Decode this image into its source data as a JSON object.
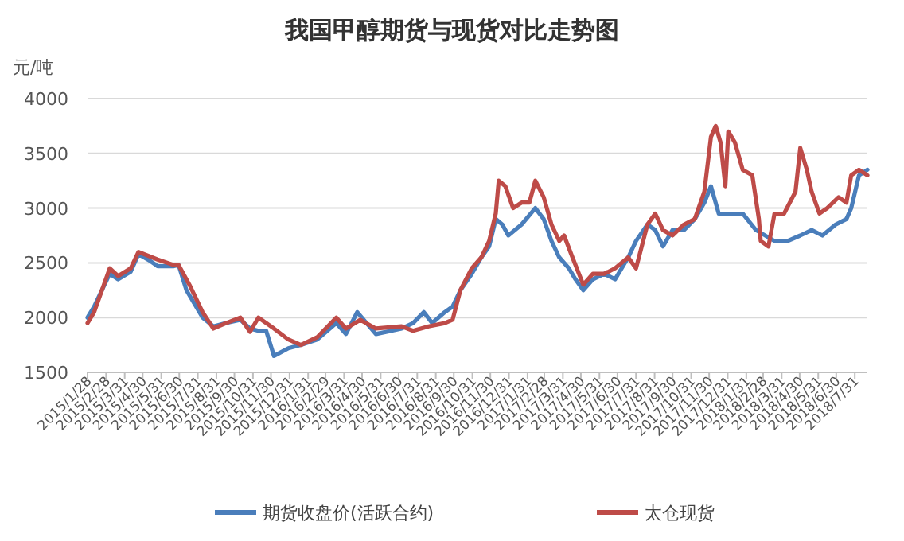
{
  "chart_data": {
    "type": "line",
    "title": "我国甲醇期货与现货对比走势图",
    "ylabel": "元/吨",
    "xlim": [
      "2015-01-28",
      "2018-08-21"
    ],
    "xticks": [
      {
        "value": "2015-01-28",
        "label": "2015/1/28"
      },
      {
        "value": "2015-02-28",
        "label": "2015/2/28"
      },
      {
        "value": "2015-03-31",
        "label": "2015/3/31"
      },
      {
        "value": "2015-04-30",
        "label": "2015/4/30"
      },
      {
        "value": "2015-05-31",
        "label": "2015/5/31"
      },
      {
        "value": "2015-06-30",
        "label": "2015/6/30"
      },
      {
        "value": "2015-07-31",
        "label": "2015/7/31"
      },
      {
        "value": "2015-08-31",
        "label": "2015/8/31"
      },
      {
        "value": "2015-09-30",
        "label": "2015/9/30"
      },
      {
        "value": "2015-10-31",
        "label": "2015/10/31"
      },
      {
        "value": "2015-11-30",
        "label": "2015/11/30"
      },
      {
        "value": "2015-12-31",
        "label": "2015/12/31"
      },
      {
        "value": "2016-01-31",
        "label": "2016/1/31"
      },
      {
        "value": "2016-02-29",
        "label": "2016/2/29"
      },
      {
        "value": "2016-03-31",
        "label": "2016/3/31"
      },
      {
        "value": "2016-04-30",
        "label": "2016/4/30"
      },
      {
        "value": "2016-05-31",
        "label": "2016/5/31"
      },
      {
        "value": "2016-06-30",
        "label": "2016/6/30"
      },
      {
        "value": "2016-07-31",
        "label": "2016/7/31"
      },
      {
        "value": "2016-08-31",
        "label": "2016/8/31"
      },
      {
        "value": "2016-09-30",
        "label": "2016/9/30"
      },
      {
        "value": "2016-10-31",
        "label": "2016/10/31"
      },
      {
        "value": "2016-11-30",
        "label": "2016/11/30"
      },
      {
        "value": "2016-12-31",
        "label": "2016/12/31"
      },
      {
        "value": "2017-01-31",
        "label": "2017/1/31"
      },
      {
        "value": "2017-02-28",
        "label": "2017/2/28"
      },
      {
        "value": "2017-03-31",
        "label": "2017/3/31"
      },
      {
        "value": "2017-04-30",
        "label": "2017/4/30"
      },
      {
        "value": "2017-05-31",
        "label": "2017/5/31"
      },
      {
        "value": "2017-06-30",
        "label": "2017/6/30"
      },
      {
        "value": "2017-07-31",
        "label": "2017/7/31"
      },
      {
        "value": "2017-08-31",
        "label": "2017/8/31"
      },
      {
        "value": "2017-09-30",
        "label": "2017/9/30"
      },
      {
        "value": "2017-10-31",
        "label": "2017/10/31"
      },
      {
        "value": "2017-11-30",
        "label": "2017/11/30"
      },
      {
        "value": "2017-12-31",
        "label": "2017/12/31"
      },
      {
        "value": "2018-01-31",
        "label": "2018/1/31"
      },
      {
        "value": "2018-02-28",
        "label": "2018/2/28"
      },
      {
        "value": "2018-03-31",
        "label": "2018/3/31"
      },
      {
        "value": "2018-04-30",
        "label": "2018/4/30"
      },
      {
        "value": "2018-05-31",
        "label": "2018/5/31"
      },
      {
        "value": "2018-06-30",
        "label": "2018/6/30"
      },
      {
        "value": "2018-07-31",
        "label": "2018/7/31"
      }
    ],
    "ylim": [
      1500,
      4000
    ],
    "yticks": [
      1500,
      2000,
      2500,
      3000,
      3500,
      4000
    ],
    "grid": "y",
    "legend": "bottom",
    "marker": "none",
    "line_style": "solid",
    "series": [
      {
        "name": "期货收盘价(活跃合约)",
        "color": "#4a7ebb",
        "x": [
          "2015-01-28",
          "2015-02-08",
          "2015-03-06",
          "2015-03-20",
          "2015-04-10",
          "2015-04-23",
          "2015-05-12",
          "2015-05-25",
          "2015-06-21",
          "2015-06-29",
          "2015-07-12",
          "2015-08-08",
          "2015-08-26",
          "2015-09-16",
          "2015-10-10",
          "2015-10-26",
          "2015-11-09",
          "2015-11-22",
          "2015-12-05",
          "2015-12-29",
          "2016-01-19",
          "2016-02-15",
          "2016-03-18",
          "2016-04-03",
          "2016-04-22",
          "2016-05-23",
          "2016-07-05",
          "2016-07-24",
          "2016-08-11",
          "2016-08-25",
          "2016-09-15",
          "2016-09-28",
          "2016-10-11",
          "2016-10-30",
          "2016-11-15",
          "2016-11-28",
          "2016-12-09",
          "2016-12-20",
          "2016-12-30",
          "2017-01-21",
          "2017-02-13",
          "2017-02-27",
          "2017-03-12",
          "2017-03-25",
          "2017-04-10",
          "2017-04-21",
          "2017-05-04",
          "2017-05-20",
          "2017-06-08",
          "2017-06-26",
          "2017-07-18",
          "2017-07-31",
          "2017-08-19",
          "2017-09-01",
          "2017-09-14",
          "2017-09-30",
          "2017-10-19",
          "2017-11-06",
          "2017-11-22",
          "2017-12-03",
          "2017-12-16",
          "2018-01-07",
          "2018-01-25",
          "2018-02-16",
          "2018-03-19",
          "2018-04-10",
          "2018-05-01",
          "2018-05-20",
          "2018-06-07",
          "2018-06-29",
          "2018-07-17",
          "2018-07-25",
          "2018-08-07",
          "2018-08-21"
        ],
        "values": [
          2000,
          2100,
          2400,
          2350,
          2420,
          2580,
          2520,
          2470,
          2470,
          2480,
          2250,
          2000,
          1920,
          1950,
          1980,
          1900,
          1880,
          1880,
          1650,
          1720,
          1750,
          1800,
          1950,
          1850,
          2050,
          1850,
          1900,
          1950,
          2050,
          1950,
          2050,
          2100,
          2250,
          2400,
          2550,
          2650,
          2900,
          2850,
          2750,
          2850,
          3000,
          2900,
          2700,
          2550,
          2450,
          2350,
          2250,
          2350,
          2400,
          2350,
          2550,
          2700,
          2850,
          2800,
          2650,
          2800,
          2800,
          2900,
          3050,
          3200,
          2950,
          2950,
          2950,
          2800,
          2700,
          2700,
          2750,
          2800,
          2750,
          2850,
          2900,
          3000,
          3300,
          3350
        ]
      },
      {
        "name": "太仓现货",
        "color": "#be4b48",
        "x": [
          "2015-01-28",
          "2015-02-08",
          "2015-03-06",
          "2015-03-20",
          "2015-04-10",
          "2015-04-23",
          "2015-05-25",
          "2015-06-21",
          "2015-06-29",
          "2015-07-17",
          "2015-08-08",
          "2015-08-26",
          "2015-09-16",
          "2015-10-10",
          "2015-10-26",
          "2015-11-09",
          "2015-12-05",
          "2015-12-29",
          "2016-01-19",
          "2016-02-15",
          "2016-03-18",
          "2016-04-03",
          "2016-04-27",
          "2016-05-23",
          "2016-07-05",
          "2016-07-24",
          "2016-08-19",
          "2016-09-15",
          "2016-09-28",
          "2016-10-11",
          "2016-10-30",
          "2016-11-15",
          "2016-11-28",
          "2016-12-09",
          "2016-12-14",
          "2016-12-25",
          "2017-01-07",
          "2017-01-21",
          "2017-02-03",
          "2017-02-13",
          "2017-02-27",
          "2017-03-12",
          "2017-03-25",
          "2017-04-02",
          "2017-04-16",
          "2017-05-04",
          "2017-05-20",
          "2017-06-08",
          "2017-06-26",
          "2017-07-18",
          "2017-07-31",
          "2017-08-19",
          "2017-09-01",
          "2017-09-14",
          "2017-09-30",
          "2017-10-19",
          "2017-11-06",
          "2017-11-22",
          "2017-12-03",
          "2017-12-11",
          "2017-12-19",
          "2017-12-27",
          "2018-01-01",
          "2018-01-12",
          "2018-01-25",
          "2018-02-10",
          "2018-02-21",
          "2018-02-24",
          "2018-03-09",
          "2018-03-19",
          "2018-04-04",
          "2018-04-23",
          "2018-05-01",
          "2018-05-12",
          "2018-05-20",
          "2018-06-02",
          "2018-06-15",
          "2018-07-04",
          "2018-07-17",
          "2018-07-25",
          "2018-08-07",
          "2018-08-21"
        ],
        "values": [
          1950,
          2050,
          2450,
          2380,
          2450,
          2600,
          2530,
          2480,
          2480,
          2300,
          2050,
          1900,
          1950,
          2000,
          1870,
          2000,
          1900,
          1800,
          1750,
          1820,
          2000,
          1900,
          1980,
          1900,
          1920,
          1880,
          1920,
          1950,
          1980,
          2250,
          2450,
          2550,
          2700,
          2950,
          3250,
          3200,
          3000,
          3050,
          3050,
          3250,
          3100,
          2850,
          2700,
          2750,
          2550,
          2300,
          2400,
          2400,
          2450,
          2550,
          2450,
          2850,
          2950,
          2800,
          2750,
          2850,
          2900,
          3150,
          3650,
          3750,
          3600,
          3200,
          3700,
          3600,
          3350,
          3300,
          2900,
          2700,
          2650,
          2950,
          2950,
          3150,
          3550,
          3350,
          3150,
          2950,
          3000,
          3100,
          3050,
          3300,
          3350,
          3300
        ]
      }
    ]
  }
}
